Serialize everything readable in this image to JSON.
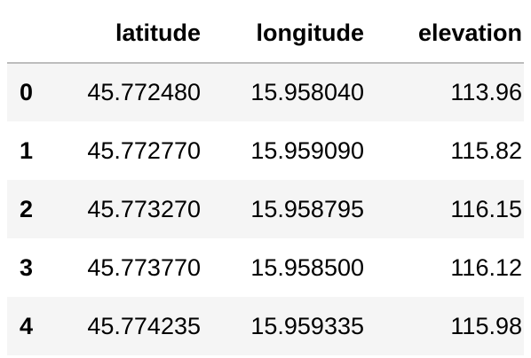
{
  "table": {
    "columns": [
      "latitude",
      "longitude",
      "elevation"
    ],
    "rows": [
      {
        "index": "0",
        "latitude": "45.772480",
        "longitude": "15.958040",
        "elevation": "113.96"
      },
      {
        "index": "1",
        "latitude": "45.772770",
        "longitude": "15.959090",
        "elevation": "115.82"
      },
      {
        "index": "2",
        "latitude": "45.773270",
        "longitude": "15.958795",
        "elevation": "116.15"
      },
      {
        "index": "3",
        "latitude": "45.773770",
        "longitude": "15.958500",
        "elevation": "116.12"
      },
      {
        "index": "4",
        "latitude": "45.774235",
        "longitude": "15.959335",
        "elevation": "115.98"
      }
    ]
  }
}
